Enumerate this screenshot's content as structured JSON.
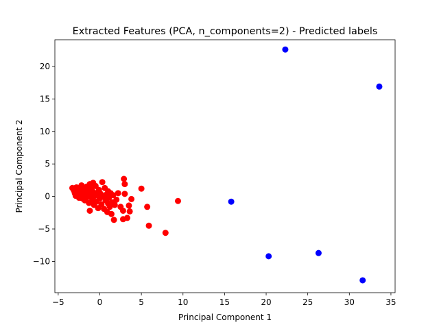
{
  "chart_data": {
    "type": "scatter",
    "title": "Extracted Features (PCA, n_components=2) - Predicted labels",
    "xlabel": "Principal Component 1",
    "ylabel": "Principal Component 2",
    "xlim": [
      -5.4,
      35.5
    ],
    "ylim": [
      -14.8,
      24.1
    ],
    "xticks": [
      -5,
      0,
      5,
      10,
      15,
      20,
      25,
      30,
      35
    ],
    "yticks": [
      -10,
      -5,
      0,
      5,
      10,
      15,
      20
    ],
    "grid": false,
    "legend": "none",
    "colors": {
      "cluster_0": "#ff0000",
      "cluster_1": "#0000ff"
    },
    "series": [
      {
        "color": "#ff0000",
        "points": [
          [
            -3.3,
            1.3
          ],
          [
            -3.1,
            0.9
          ],
          [
            -3.0,
            0.5
          ],
          [
            -2.9,
            0.1
          ],
          [
            -2.8,
            1.4
          ],
          [
            -2.7,
            0.8
          ],
          [
            -2.6,
            0.3
          ],
          [
            -2.5,
            -0.2
          ],
          [
            -2.4,
            1.1
          ],
          [
            -2.3,
            0.6
          ],
          [
            -2.2,
            1.7
          ],
          [
            -2.1,
            -0.3
          ],
          [
            -2.0,
            0.2
          ],
          [
            -1.9,
            1.0
          ],
          [
            -1.8,
            -0.6
          ],
          [
            -1.7,
            0.5
          ],
          [
            -1.6,
            1.5
          ],
          [
            -1.5,
            -0.1
          ],
          [
            -1.4,
            0.9
          ],
          [
            -1.3,
            -1.0
          ],
          [
            -1.2,
            1.9
          ],
          [
            -1.2,
            -2.2
          ],
          [
            -1.1,
            0.3
          ],
          [
            -1.0,
            1.2
          ],
          [
            -0.9,
            -0.5
          ],
          [
            -0.8,
            2.1
          ],
          [
            -0.8,
            0.7
          ],
          [
            -0.7,
            -1.3
          ],
          [
            -0.6,
            0.1
          ],
          [
            -0.5,
            1.6
          ],
          [
            -0.4,
            -0.8
          ],
          [
            -0.3,
            0.5
          ],
          [
            -0.2,
            -1.8
          ],
          [
            -0.1,
            1.0
          ],
          [
            0.0,
            -0.3
          ],
          [
            0.1,
            0.4
          ],
          [
            0.2,
            -1.2
          ],
          [
            0.3,
            2.2
          ],
          [
            0.4,
            0.0
          ],
          [
            0.5,
            -1.9
          ],
          [
            0.6,
            1.3
          ],
          [
            0.7,
            -0.6
          ],
          [
            0.8,
            0.3
          ],
          [
            0.9,
            -2.4
          ],
          [
            1.0,
            -1.1
          ],
          [
            1.0,
            0.8
          ],
          [
            1.1,
            -0.2
          ],
          [
            1.2,
            -1.6
          ],
          [
            1.3,
            0.5
          ],
          [
            1.4,
            -2.7
          ],
          [
            1.5,
            -0.9
          ],
          [
            1.6,
            0.2
          ],
          [
            1.7,
            -3.6
          ],
          [
            1.8,
            -1.3
          ],
          [
            2.0,
            -0.5
          ],
          [
            2.2,
            0.5
          ],
          [
            2.5,
            -1.6
          ],
          [
            2.8,
            -3.5
          ],
          [
            2.8,
            -2.2
          ],
          [
            2.9,
            2.7
          ],
          [
            3.0,
            1.9
          ],
          [
            3.0,
            0.4
          ],
          [
            3.3,
            -3.3
          ],
          [
            3.5,
            -1.4
          ],
          [
            3.6,
            -2.3
          ],
          [
            3.8,
            -0.4
          ],
          [
            5.0,
            1.2
          ],
          [
            5.7,
            -1.6
          ],
          [
            5.9,
            -4.5
          ],
          [
            7.9,
            -5.6
          ],
          [
            9.4,
            -0.7
          ]
        ]
      },
      {
        "color": "#0000ff",
        "points": [
          [
            15.8,
            -0.8
          ],
          [
            20.3,
            -9.2
          ],
          [
            22.3,
            22.6
          ],
          [
            26.3,
            -8.7
          ],
          [
            31.6,
            -12.9
          ],
          [
            33.6,
            16.9
          ]
        ]
      }
    ]
  }
}
